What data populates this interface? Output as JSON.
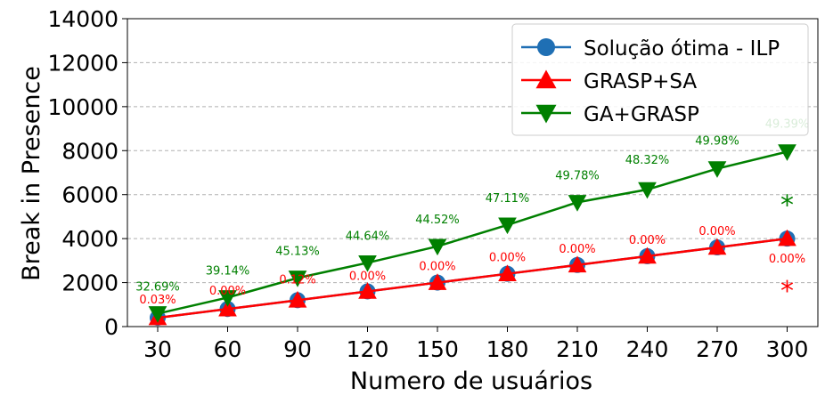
{
  "chart_data": {
    "type": "line",
    "xlabel": "Numero de usuários",
    "ylabel": "Break in Presence",
    "categories": [
      "30",
      "60",
      "90",
      "120",
      "150",
      "180",
      "210",
      "240",
      "270",
      "300"
    ],
    "x": [
      30,
      60,
      90,
      120,
      150,
      180,
      210,
      240,
      270,
      300
    ],
    "ylim": [
      0,
      14000
    ],
    "yticks": [
      "0",
      "2000",
      "4000",
      "6000",
      "8000",
      "10000",
      "12000",
      "14000"
    ],
    "grid": "horizontal dashed",
    "legend_position": "top-right",
    "series": [
      {
        "name": "Solução ótima - ILP",
        "color": "#1f6fb4",
        "marker": "circle",
        "values": [
          400,
          800,
          1200,
          1600,
          2000,
          2400,
          2800,
          3200,
          3600,
          4000
        ]
      },
      {
        "name": "GRASP+SA",
        "color": "#ff0000",
        "marker": "triangle-up",
        "values": [
          400,
          800,
          1200,
          1600,
          2000,
          2400,
          2800,
          3200,
          3600,
          4000
        ],
        "annotations": [
          "0.03%",
          "0.00%",
          "0.12%",
          "0.00%",
          "0.00%",
          "0.00%",
          "0.00%",
          "0.00%",
          "0.00%",
          "0.00%"
        ]
      },
      {
        "name": "GA+GRASP",
        "color": "#008000",
        "marker": "triangle-down",
        "values": [
          590,
          1320,
          2210,
          2900,
          3650,
          4620,
          5650,
          6230,
          7180,
          7950
        ],
        "annotations": [
          "32.69%",
          "39.14%",
          "45.13%",
          "44.64%",
          "44.52%",
          "47.11%",
          "49.78%",
          "48.32%",
          "49.98%",
          "49.39%"
        ]
      }
    ],
    "star_marks": [
      {
        "text": "*",
        "color": "#008000",
        "x": 300,
        "y": 6000
      },
      {
        "text": "*",
        "color": "#ff0000",
        "x": 300,
        "y": 2100
      }
    ]
  }
}
